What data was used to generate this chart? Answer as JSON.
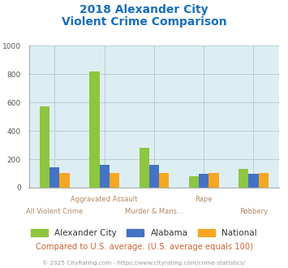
{
  "title_line1": "2018 Alexander City",
  "title_line2": "Violent Crime Comparison",
  "categories": [
    "All Violent Crime",
    "Aggravated Assault",
    "Murder & Mans...",
    "Rape",
    "Robbery"
  ],
  "series": {
    "Alexander City": [
      570,
      820,
      280,
      80,
      130
    ],
    "Alabama": [
      145,
      162,
      162,
      100,
      100
    ],
    "National": [
      103,
      103,
      103,
      105,
      105
    ]
  },
  "colors": {
    "Alexander City": "#8dc63f",
    "Alabama": "#4472c4",
    "National": "#f5a623"
  },
  "ylim": [
    0,
    1000
  ],
  "yticks": [
    0,
    200,
    400,
    600,
    800,
    1000
  ],
  "plot_bg": "#ddeef3",
  "title_color": "#1a6fba",
  "xlabel_top_color": "#b08868",
  "xlabel_bot_color": "#b08868",
  "footer_text": "Compared to U.S. average. (U.S. average equals 100)",
  "copyright_text": "© 2025 CityRating.com - https://www.cityrating.com/crime-statistics/",
  "footer_color": "#cc6633",
  "copyright_color": "#999999",
  "grid_color": "#b0c8d0",
  "label_top": [
    "",
    "Aggravated Assault",
    "",
    "Rape",
    ""
  ],
  "label_bot": [
    "All Violent Crime",
    "",
    "Murder & Mans...",
    "",
    "Robbery"
  ]
}
